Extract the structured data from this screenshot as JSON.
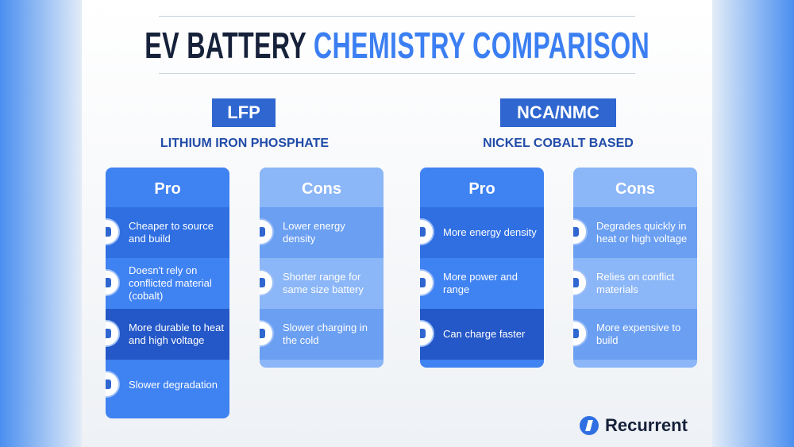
{
  "header": {
    "title_dark": "EV BATTERY",
    "title_accent": "CHEMISTRY COMPARISON"
  },
  "sections": [
    {
      "badge": "LFP",
      "subtitle": "LITHIUM IRON PHOSPHATE",
      "columns": [
        {
          "heading": "Pro",
          "items": [
            "Cheaper to source and build",
            "Doesn't rely on conflicted material (cobalt)",
            "More durable to heat and high voltage",
            "Slower degradation"
          ]
        },
        {
          "heading": "Cons",
          "items": [
            "Lower energy density",
            "Shorter range for same size battery",
            "Slower charging in the cold"
          ]
        }
      ]
    },
    {
      "badge": "NCA/NMC",
      "subtitle": "NICKEL COBALT BASED",
      "columns": [
        {
          "heading": "Pro",
          "items": [
            "More energy density",
            "More power and range",
            "Can charge faster"
          ]
        },
        {
          "heading": "Cons",
          "items": [
            "Degrades quickly in heat or high voltage",
            "Relies on conflict materials",
            "More expensive to build"
          ]
        }
      ]
    }
  ],
  "brand": "Recurrent"
}
